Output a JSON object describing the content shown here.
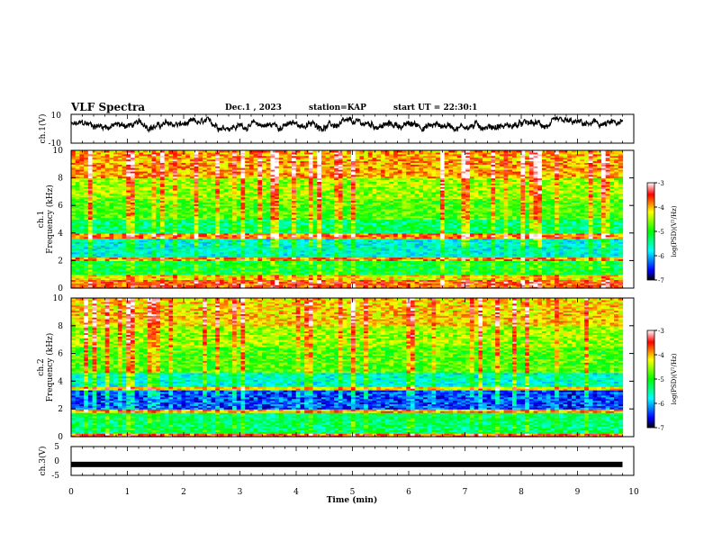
{
  "header": {
    "title": "VLF Spectra",
    "date": "Dec.1 , 2023",
    "station": "station=KAP",
    "start": "start UT =  22:30:1"
  },
  "chart_data": [
    {
      "name": "ch1-waveform",
      "type": "line",
      "ylabel": "ch.1(V)",
      "ylim": [
        -10,
        10
      ],
      "y_ticks": [
        "10",
        "-10"
      ],
      "xlim": [
        0,
        10
      ],
      "approx_mean": 2.5,
      "approx_range": [
        -2,
        8
      ]
    },
    {
      "name": "ch1-spectrogram",
      "type": "heatmap",
      "ylabel_line1": "ch.1",
      "ylabel_line2": "Frequency (kHz)",
      "ylim": [
        0,
        10
      ],
      "y_ticks": [
        "0",
        "2",
        "4",
        "6",
        "8",
        "10"
      ],
      "xlim": [
        0,
        9.8
      ],
      "colorbar": {
        "label": "log(PSD)(V²/Hz)",
        "range": [
          -7,
          -3
        ],
        "ticks": [
          "-3",
          "-4",
          "-5",
          "-6",
          "-7"
        ]
      }
    },
    {
      "name": "ch2-spectrogram",
      "type": "heatmap",
      "ylabel_line1": "ch.2",
      "ylabel_line2": "Frequency (kHz)",
      "ylim": [
        0,
        10
      ],
      "y_ticks": [
        "0",
        "2",
        "4",
        "6",
        "8",
        "10"
      ],
      "xlim": [
        0,
        9.8
      ],
      "colorbar": {
        "label": "log(PSD)(V²/Hz)",
        "range": [
          -7,
          -3
        ],
        "ticks": [
          "-3",
          "-4",
          "-5",
          "-6",
          "-7"
        ]
      }
    },
    {
      "name": "ch3-waveform",
      "type": "line",
      "ylabel": "ch.3(V)",
      "ylim": [
        -5,
        5
      ],
      "y_ticks": [
        "5",
        "0",
        "-5"
      ],
      "approx_level": -1.2,
      "xlabel": "Time (min)",
      "xlim": [
        0,
        10
      ],
      "x_ticks": [
        "0",
        "1",
        "2",
        "3",
        "4",
        "5",
        "6",
        "7",
        "8",
        "9",
        "10"
      ]
    }
  ]
}
